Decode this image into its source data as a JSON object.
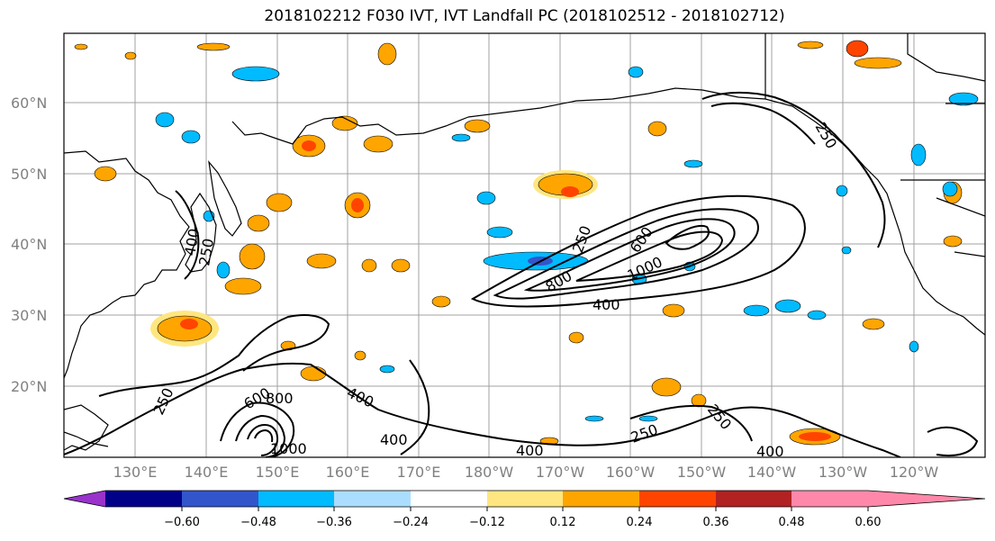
{
  "title": "2018102212 F030 IVT, IVT Landfall PC (2018102512 - 2018102712)",
  "lat_labels": [
    "20°N",
    "30°N",
    "40°N",
    "50°N",
    "60°N"
  ],
  "lon_labels": [
    "130°E",
    "140°E",
    "150°E",
    "160°E",
    "170°E",
    "180°W",
    "170°W",
    "160°W",
    "150°W",
    "140°W",
    "130°W",
    "120°W"
  ],
  "colorbar": {
    "colors": [
      "#9933cc",
      "#000088",
      "#3355cc",
      "#00bbff",
      "#aaddff",
      "#ffffff",
      "#ffe680",
      "#ffa500",
      "#ff4400",
      "#b22222",
      "#ff88aa"
    ],
    "tick_labels": [
      "−0.60",
      "−0.48",
      "−0.36",
      "−0.24",
      "−0.12",
      "0.12",
      "0.24",
      "0.36",
      "0.48",
      "0.60"
    ]
  },
  "contour_labels": [
    "250",
    "400",
    "600",
    "800",
    "1000",
    "250",
    "400",
    "600",
    "800",
    "1000",
    "400",
    "250",
    "250",
    "400",
    "400",
    "250",
    "250",
    "400"
  ]
}
